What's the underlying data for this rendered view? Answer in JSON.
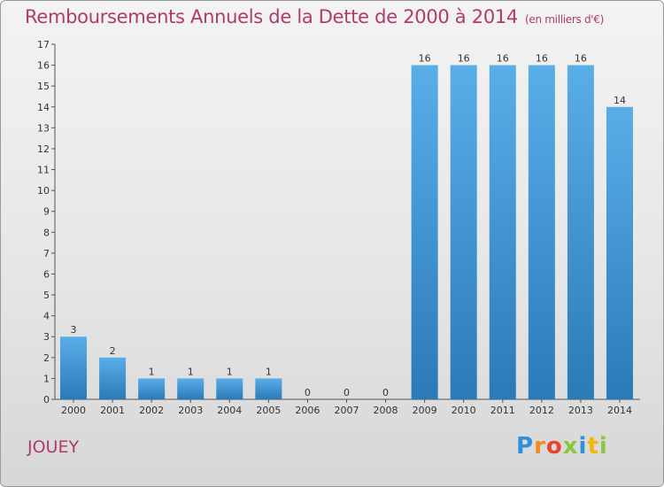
{
  "header": {
    "title": "Remboursements Annuels de la Dette de 2000 à 2014",
    "unit": "(en milliers d'€)"
  },
  "footer": {
    "commune": "JOUEY",
    "logo_letters": [
      {
        "ch": "P",
        "color": "#2f8fd8"
      },
      {
        "ch": "r",
        "color": "#f08c1c"
      },
      {
        "ch": "o",
        "color": "#e8452c"
      },
      {
        "ch": "x",
        "color": "#8cc63f"
      },
      {
        "ch": "i",
        "color": "#2f8fd8"
      },
      {
        "ch": "t",
        "color": "#f5b800"
      },
      {
        "ch": "i",
        "color": "#8cc63f"
      }
    ]
  },
  "chart_data": {
    "type": "bar",
    "title": "Remboursements Annuels de la Dette de 2000 à 2014",
    "subtitle": "(en milliers d'€)",
    "categories": [
      "2000",
      "2001",
      "2002",
      "2003",
      "2004",
      "2005",
      "2006",
      "2007",
      "2008",
      "2009",
      "2010",
      "2011",
      "2012",
      "2013",
      "2014"
    ],
    "values": [
      3,
      2,
      1,
      1,
      1,
      1,
      0,
      0,
      0,
      16,
      16,
      16,
      16,
      16,
      14
    ],
    "data_labels": [
      "3",
      "2",
      "1",
      "1",
      "1",
      "1",
      "0",
      "0",
      "0",
      "16",
      "16",
      "16",
      "16",
      "16",
      "14"
    ],
    "y_ticks": [
      "0",
      "1",
      "2",
      "3",
      "4",
      "5",
      "6",
      "7",
      "8",
      "9",
      "10",
      "11",
      "12",
      "13",
      "14",
      "15",
      "16",
      "17"
    ],
    "ylim": [
      0,
      17
    ],
    "xlabel": "",
    "ylabel": "",
    "grid": false,
    "bar_color_top": "#5aaee8",
    "bar_color_bottom": "#2a7ab8"
  }
}
